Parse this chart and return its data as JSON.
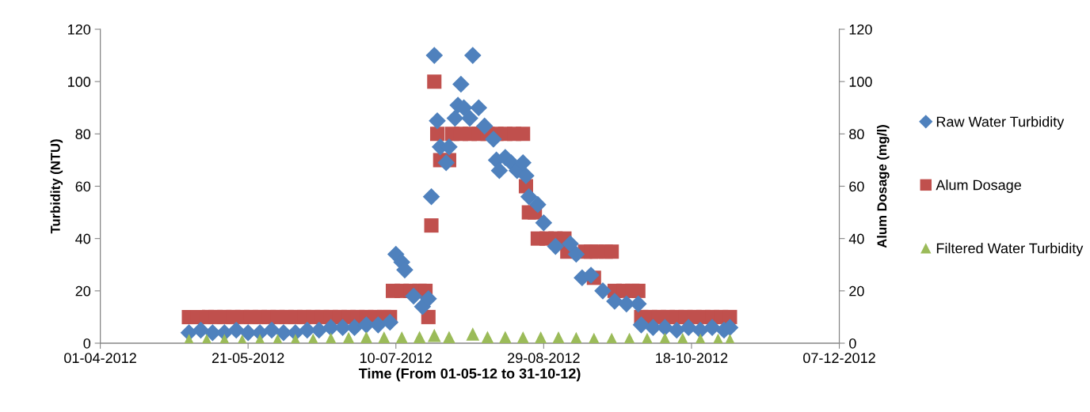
{
  "chart_data": {
    "type": "scatter",
    "xlabel": "Time (From 01-05-12 to 31-10-12)",
    "ylabel": "Turbidity (NTU)",
    "y2label": "Alum Dosage (mg/l)",
    "xlim": [
      "2012-04-01",
      "2012-12-07"
    ],
    "xticks": [
      {
        "value": "2012-04-01",
        "label": "01-04-2012"
      },
      {
        "value": "2012-05-21",
        "label": "21-05-2012"
      },
      {
        "value": "2012-07-10",
        "label": "10-07-2012"
      },
      {
        "value": "2012-08-29",
        "label": "29-08-2012"
      },
      {
        "value": "2012-10-18",
        "label": "18-10-2012"
      },
      {
        "value": "2012-12-07",
        "label": "07-12-2012"
      }
    ],
    "ylim": [
      0,
      120
    ],
    "yticks": [
      0,
      20,
      40,
      60,
      80,
      100,
      120
    ],
    "y2lim": [
      0,
      120
    ],
    "y2ticks": [
      0,
      20,
      40,
      60,
      80,
      100,
      120
    ],
    "grid": false,
    "legend": "right",
    "series": [
      {
        "name": "Raw Water Turbidity",
        "color": "#4f81bd",
        "marker": "diamond",
        "x": [
          "2012-05-01",
          "2012-05-05",
          "2012-05-09",
          "2012-05-13",
          "2012-05-17",
          "2012-05-21",
          "2012-05-25",
          "2012-05-29",
          "2012-06-02",
          "2012-06-06",
          "2012-06-10",
          "2012-06-14",
          "2012-06-18",
          "2012-06-22",
          "2012-06-26",
          "2012-06-30",
          "2012-07-04",
          "2012-07-08",
          "2012-07-10",
          "2012-07-12",
          "2012-07-13",
          "2012-07-16",
          "2012-07-19",
          "2012-07-21",
          "2012-07-22",
          "2012-07-23",
          "2012-07-24",
          "2012-07-25",
          "2012-07-27",
          "2012-07-28",
          "2012-07-30",
          "2012-07-31",
          "2012-08-01",
          "2012-08-02",
          "2012-08-04",
          "2012-08-05",
          "2012-08-07",
          "2012-08-09",
          "2012-08-12",
          "2012-08-13",
          "2012-08-14",
          "2012-08-16",
          "2012-08-18",
          "2012-08-20",
          "2012-08-22",
          "2012-08-23",
          "2012-08-24",
          "2012-08-27",
          "2012-08-29",
          "2012-09-02",
          "2012-09-07",
          "2012-09-09",
          "2012-09-11",
          "2012-09-14",
          "2012-09-18",
          "2012-09-22",
          "2012-09-26",
          "2012-09-30",
          "2012-10-01",
          "2012-10-05",
          "2012-10-09",
          "2012-10-13",
          "2012-10-17",
          "2012-10-21",
          "2012-10-25",
          "2012-10-29",
          "2012-10-31"
        ],
        "values": [
          4,
          5,
          4,
          4,
          5,
          4,
          4,
          5,
          4,
          4,
          5,
          5,
          6,
          6,
          6,
          7,
          7,
          8,
          34,
          31,
          28,
          18,
          14,
          17,
          56,
          110,
          85,
          75,
          69,
          75,
          86,
          91,
          99,
          90,
          86,
          110,
          90,
          83,
          78,
          70,
          66,
          71,
          69,
          66,
          69,
          64,
          56,
          53,
          46,
          37,
          38,
          34,
          25,
          26,
          20,
          16,
          15,
          15,
          7,
          6,
          6,
          5,
          6,
          5,
          6,
          5,
          6
        ]
      },
      {
        "name": "Alum Dosage",
        "color": "#c0504d",
        "marker": "square",
        "axis": "y2",
        "x": [
          "2012-05-01",
          "2012-05-04",
          "2012-05-07",
          "2012-05-10",
          "2012-05-13",
          "2012-05-16",
          "2012-05-19",
          "2012-05-22",
          "2012-05-25",
          "2012-05-28",
          "2012-05-31",
          "2012-06-03",
          "2012-06-06",
          "2012-06-09",
          "2012-06-12",
          "2012-06-15",
          "2012-06-18",
          "2012-06-21",
          "2012-06-24",
          "2012-06-27",
          "2012-06-30",
          "2012-07-03",
          "2012-07-06",
          "2012-07-08",
          "2012-07-09",
          "2012-07-12",
          "2012-07-15",
          "2012-07-18",
          "2012-07-20",
          "2012-07-21",
          "2012-07-22",
          "2012-07-23",
          "2012-07-24",
          "2012-07-25",
          "2012-07-28",
          "2012-07-29",
          "2012-08-01",
          "2012-08-04",
          "2012-08-07",
          "2012-08-10",
          "2012-08-13",
          "2012-08-16",
          "2012-08-19",
          "2012-08-22",
          "2012-08-23",
          "2012-08-24",
          "2012-08-26",
          "2012-08-27",
          "2012-08-30",
          "2012-09-02",
          "2012-09-05",
          "2012-09-06",
          "2012-09-12",
          "2012-09-14",
          "2012-09-15",
          "2012-09-16",
          "2012-09-19",
          "2012-09-21",
          "2012-09-22",
          "2012-09-25",
          "2012-09-28",
          "2012-09-30",
          "2012-10-01",
          "2012-10-04",
          "2012-10-07",
          "2012-10-10",
          "2012-10-13",
          "2012-10-16",
          "2012-10-19",
          "2012-10-22",
          "2012-10-25",
          "2012-10-28",
          "2012-10-31"
        ],
        "values": [
          10,
          10,
          10,
          10,
          10,
          10,
          10,
          10,
          10,
          10,
          10,
          10,
          10,
          10,
          10,
          10,
          10,
          10,
          10,
          10,
          10,
          10,
          10,
          10,
          20,
          20,
          20,
          20,
          20,
          10,
          45,
          100,
          80,
          70,
          70,
          80,
          80,
          80,
          80,
          80,
          80,
          80,
          80,
          80,
          60,
          50,
          50,
          40,
          40,
          40,
          40,
          35,
          35,
          35,
          25,
          35,
          35,
          35,
          20,
          20,
          20,
          20,
          10,
          10,
          10,
          10,
          10,
          10,
          10,
          10,
          10,
          10,
          10
        ]
      },
      {
        "name": "Filtered Water Turbidity",
        "color": "#9bbb59",
        "marker": "triangle",
        "x": [
          "2012-05-01",
          "2012-05-07",
          "2012-05-13",
          "2012-05-19",
          "2012-05-25",
          "2012-05-31",
          "2012-06-06",
          "2012-06-12",
          "2012-06-18",
          "2012-06-24",
          "2012-06-30",
          "2012-07-06",
          "2012-07-12",
          "2012-07-18",
          "2012-07-23",
          "2012-07-28",
          "2012-08-05",
          "2012-08-10",
          "2012-08-16",
          "2012-08-22",
          "2012-08-28",
          "2012-09-03",
          "2012-09-09",
          "2012-09-15",
          "2012-09-21",
          "2012-09-27",
          "2012-10-03",
          "2012-10-09",
          "2012-10-15",
          "2012-10-21",
          "2012-10-27",
          "2012-10-31"
        ],
        "values": [
          1,
          1,
          1,
          0.8,
          1,
          1,
          1,
          1.2,
          1.5,
          1.8,
          2,
          2,
          2,
          2.2,
          3,
          2.2,
          3.5,
          2.2,
          2.2,
          2,
          2,
          2,
          1.8,
          1.5,
          1.5,
          1.5,
          1.5,
          1.5,
          1.5,
          1.2,
          1.2,
          1
        ]
      }
    ]
  }
}
